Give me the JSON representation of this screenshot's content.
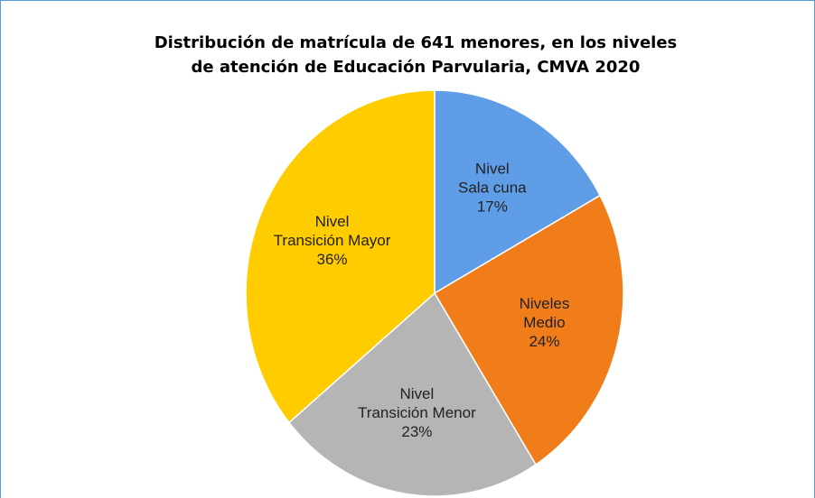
{
  "chart_data": {
    "type": "pie",
    "title": [
      "Distribución de matrícula de 641 menores, en los niveles",
      "de atención de Educación Parvularia, CMVA 2020"
    ],
    "categories": [
      [
        "Nivel",
        "Sala cuna"
      ],
      [
        "Niveles",
        "Medio"
      ],
      [
        "Nivel",
        "Transición Menor"
      ],
      [
        "Nivel",
        "Transición Mayor"
      ]
    ],
    "values": [
      17,
      24,
      23,
      36
    ],
    "value_labels": [
      "17%",
      "24%",
      "23%",
      "36%"
    ],
    "colors": [
      "#5f9de6",
      "#f07d1a",
      "#b5b5b5",
      "#ffcc00"
    ]
  }
}
